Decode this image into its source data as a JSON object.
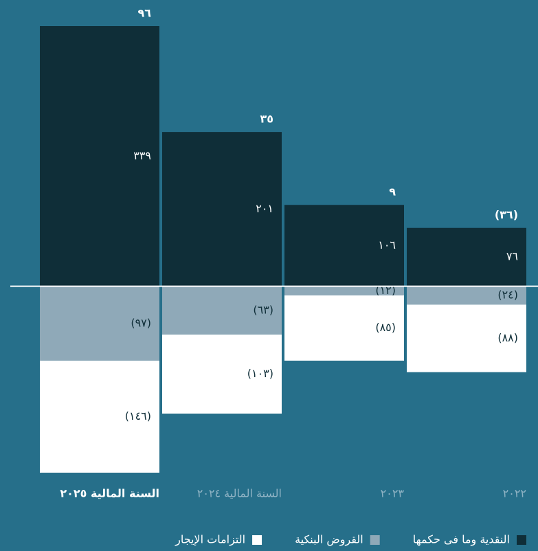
{
  "chart_data": {
    "type": "stacked-bar",
    "categories": [
      "السنة المالية ٢٠٢٥",
      "السنة المالية ٢٠٢٤",
      "٢٠٢٣",
      "٢٠٢٢"
    ],
    "series": [
      {
        "name": "النقدية وما فى حكمها",
        "color": "#0f2e38",
        "values": [
          339,
          201,
          106,
          76
        ],
        "value_labels": [
          "٣٣٩",
          "٢٠١",
          "١٠٦",
          "٧٦"
        ]
      },
      {
        "name": "القروض البنكية",
        "color": "#8fa9b8",
        "values": [
          -97,
          -63,
          -12,
          -24
        ],
        "value_labels": [
          "(٩٧)",
          "(٦٣)",
          "(١٢)",
          "(٢٤)"
        ]
      },
      {
        "name": "التزامات الإيجار",
        "color": "#ffffff",
        "values": [
          -146,
          -103,
          -85,
          -88
        ],
        "value_labels": [
          "(١٤٦)",
          "(١٠٣)",
          "(٨٥)",
          "(٨٨)"
        ]
      }
    ],
    "totals": [
      96,
      35,
      9,
      -36
    ],
    "total_labels": [
      "٩٦",
      "٣٥",
      "٩",
      "(٣٦)"
    ]
  }
}
